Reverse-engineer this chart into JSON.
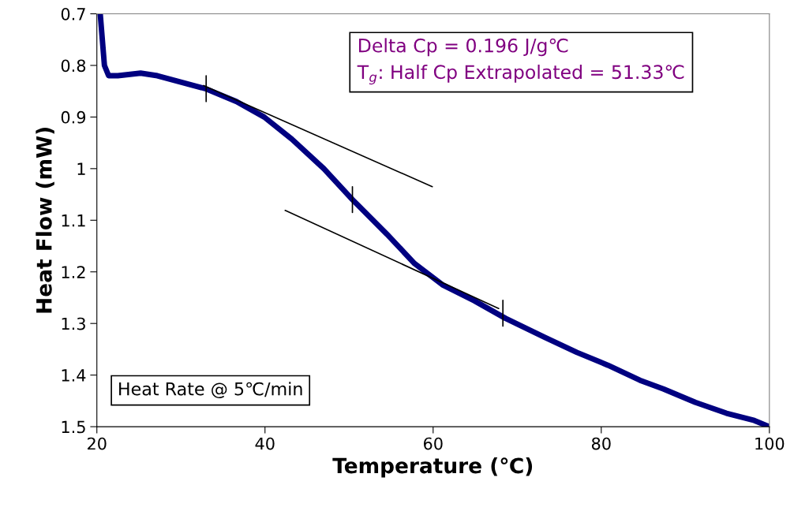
{
  "chart_data": {
    "type": "line",
    "xlabel": "Temperature (℃)",
    "ylabel": "Heat Flow (mW)",
    "xlim": [
      20,
      100
    ],
    "xticks": [
      20,
      40,
      60,
      80,
      100
    ],
    "ylim": [
      1.5,
      0.7
    ],
    "yticks": [
      0.7,
      0.8,
      0.9,
      1,
      1.1,
      1.2,
      1.3,
      1.4,
      1.5
    ],
    "grid": false,
    "legend": false,
    "series": [
      {
        "color": "#000080",
        "x": [
          20.4,
          20.9,
          21.4,
          22.5,
          25.2,
          27.2,
          32.9,
          36.6,
          39.9,
          43.2,
          47,
          50.4,
          54.5,
          57.8,
          61.1,
          64.9,
          68.6,
          73.3,
          77.1,
          80.8,
          84.6,
          87.4,
          91.2,
          94.9,
          98.2,
          100
        ],
        "values": [
          0.7,
          0.8,
          0.82,
          0.82,
          0.815,
          0.82,
          0.845,
          0.87,
          0.9,
          0.943,
          1.0,
          1.06,
          1.127,
          1.184,
          1.225,
          1.256,
          1.29,
          1.327,
          1.356,
          1.381,
          1.41,
          1.427,
          1.453,
          1.474,
          1.488,
          1.5
        ]
      },
      {
        "type": "line",
        "color": "#000000",
        "x": [
          32.7,
          59.9
        ],
        "values": [
          0.839,
          1.035
        ]
      },
      {
        "type": "line",
        "color": "#000000",
        "x": [
          42.4,
          67.8
        ],
        "values": [
          1.081,
          1.271
        ]
      },
      {
        "type": "line",
        "color": "#000000",
        "x": [
          33,
          33
        ],
        "values": [
          0.82,
          0.87
        ]
      },
      {
        "type": "line",
        "color": "#000000",
        "x": [
          50.4,
          50.4
        ],
        "values": [
          1.035,
          1.085
        ]
      },
      {
        "type": "line",
        "color": "#000000",
        "x": [
          68.3,
          68.3
        ],
        "values": [
          1.255,
          1.305
        ]
      }
    ],
    "annotations": [
      "Delta Cp = 0.196 J/g℃",
      "T$_{g}$: Half Cp Extrapolated = 51.33℃",
      "Heat Rate @ 5℃/min"
    ]
  }
}
